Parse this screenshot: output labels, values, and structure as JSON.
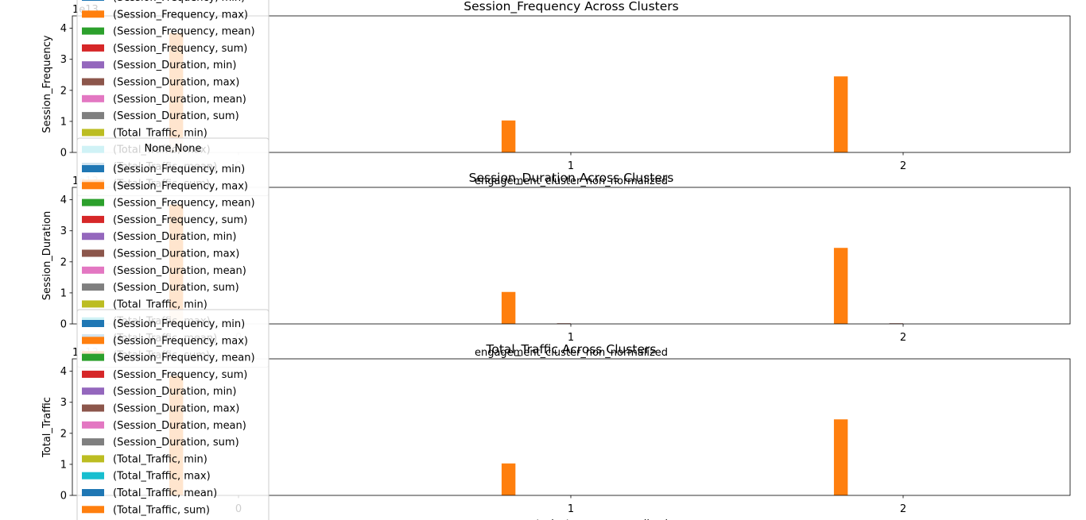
{
  "colors": {
    "Session_Frequency_min": "#1f77b4",
    "Session_Frequency_max": "#ff7f0e",
    "Session_Frequency_mean": "#2ca02c",
    "Session_Frequency_sum": "#d62728",
    "Session_Duration_min": "#9467bd",
    "Session_Duration_max": "#8c564b",
    "Session_Duration_mean": "#e377c2",
    "Session_Duration_sum": "#7f7f7f",
    "Total_Traffic_min": "#bcbd22",
    "Total_Traffic_max": "#17becf",
    "Total_Traffic_mean": "#1f77b4",
    "Total_Traffic_sum": "#ff7f0e"
  },
  "chart_data": [
    {
      "type": "bar",
      "title": "Session_Frequency Across Clusters",
      "xlabel": "engagement_cluster_non_normalized",
      "ylabel": "Session_Frequency",
      "offset_label": "1e13",
      "categories": [
        "0",
        "1",
        "2"
      ],
      "yticks": [
        "0",
        "1",
        "2",
        "3",
        "4"
      ],
      "ylim": [
        0,
        4.4
      ],
      "grid": false,
      "legend_title": "None,None",
      "legend_position": "upper-left",
      "series": [
        {
          "name": "(Session_Frequency, min)",
          "values": [
            0,
            0,
            0
          ]
        },
        {
          "name": "(Session_Frequency, max)",
          "values": [
            3.85,
            1.03,
            2.45
          ]
        },
        {
          "name": "(Session_Frequency, mean)",
          "values": [
            0,
            0,
            0
          ]
        },
        {
          "name": "(Session_Frequency, sum)",
          "values": [
            0,
            0,
            0
          ]
        },
        {
          "name": "(Session_Duration, min)",
          "values": [
            0,
            0,
            0
          ]
        },
        {
          "name": "(Session_Duration, max)",
          "values": [
            0,
            0,
            0
          ]
        },
        {
          "name": "(Session_Duration, mean)",
          "values": [
            0,
            0,
            0
          ]
        },
        {
          "name": "(Session_Duration, sum)",
          "values": [
            0,
            0,
            0
          ]
        },
        {
          "name": "(Total_Traffic, min)",
          "values": [
            0,
            0,
            0
          ]
        },
        {
          "name": "(Total_Traffic, max)",
          "values": [
            0,
            0,
            0
          ]
        },
        {
          "name": "(Total_Traffic, mean)",
          "values": [
            0,
            0,
            0
          ]
        },
        {
          "name": "(Total_Traffic, sum)",
          "values": [
            0,
            0,
            0
          ]
        }
      ]
    },
    {
      "type": "bar",
      "title": "Session_Duration Across Clusters",
      "xlabel": "engagement_cluster_non_normalized",
      "ylabel": "Session_Duration",
      "offset_label": "1e13",
      "categories": [
        "0",
        "1",
        "2"
      ],
      "yticks": [
        "0",
        "1",
        "2",
        "3",
        "4"
      ],
      "ylim": [
        0,
        4.4
      ],
      "grid": false,
      "legend_title": "None,None",
      "legend_position": "upper-left",
      "series": [
        {
          "name": "(Session_Frequency, min)",
          "values": [
            0,
            0,
            0
          ]
        },
        {
          "name": "(Session_Frequency, max)",
          "values": [
            3.85,
            1.03,
            2.45
          ]
        },
        {
          "name": "(Session_Frequency, mean)",
          "values": [
            0,
            0,
            0
          ]
        },
        {
          "name": "(Session_Frequency, sum)",
          "values": [
            0,
            0,
            0
          ]
        },
        {
          "name": "(Session_Duration, min)",
          "values": [
            0,
            0,
            0
          ]
        },
        {
          "name": "(Session_Duration, max)",
          "values": [
            0,
            0.02,
            0.02
          ]
        },
        {
          "name": "(Session_Duration, mean)",
          "values": [
            0,
            0,
            0
          ]
        },
        {
          "name": "(Session_Duration, sum)",
          "values": [
            0,
            0,
            0
          ]
        },
        {
          "name": "(Total_Traffic, min)",
          "values": [
            0,
            0,
            0
          ]
        },
        {
          "name": "(Total_Traffic, max)",
          "values": [
            0,
            0,
            0
          ]
        },
        {
          "name": "(Total_Traffic, mean)",
          "values": [
            0,
            0,
            0
          ]
        },
        {
          "name": "(Total_Traffic, sum)",
          "values": [
            0,
            0,
            0
          ]
        }
      ]
    },
    {
      "type": "bar",
      "title": "Total_Traffic Across Clusters",
      "xlabel": "engagement_cluster_non_normalized",
      "ylabel": "Total_Traffic",
      "offset_label": "1e13",
      "categories": [
        "0",
        "1",
        "2"
      ],
      "yticks": [
        "0",
        "1",
        "2",
        "3",
        "4"
      ],
      "ylim": [
        0,
        4.4
      ],
      "grid": false,
      "legend_title": "",
      "legend_position": "upper-left",
      "series": [
        {
          "name": "(Session_Frequency, min)",
          "values": [
            0,
            0,
            0
          ]
        },
        {
          "name": "(Session_Frequency, max)",
          "values": [
            3.85,
            1.03,
            2.45
          ]
        },
        {
          "name": "(Session_Frequency, mean)",
          "values": [
            0,
            0,
            0
          ]
        },
        {
          "name": "(Session_Frequency, sum)",
          "values": [
            0,
            0,
            0
          ]
        },
        {
          "name": "(Session_Duration, min)",
          "values": [
            0,
            0,
            0
          ]
        },
        {
          "name": "(Session_Duration, max)",
          "values": [
            0,
            0,
            0
          ]
        },
        {
          "name": "(Session_Duration, mean)",
          "values": [
            0,
            0,
            0
          ]
        },
        {
          "name": "(Session_Duration, sum)",
          "values": [
            0,
            0,
            0
          ]
        },
        {
          "name": "(Total_Traffic, min)",
          "values": [
            0,
            0,
            0
          ]
        },
        {
          "name": "(Total_Traffic, max)",
          "values": [
            0,
            0,
            0
          ]
        },
        {
          "name": "(Total_Traffic, mean)",
          "values": [
            0,
            0,
            0
          ]
        },
        {
          "name": "(Total_Traffic, sum)",
          "values": [
            0,
            0,
            0
          ]
        }
      ]
    }
  ]
}
